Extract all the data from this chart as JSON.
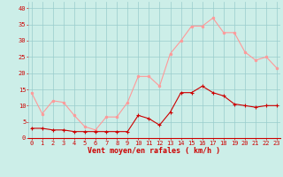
{
  "hours": [
    0,
    1,
    2,
    3,
    4,
    5,
    6,
    7,
    8,
    9,
    10,
    11,
    12,
    13,
    14,
    15,
    16,
    17,
    18,
    19,
    20,
    21,
    22,
    23
  ],
  "wind_mean": [
    3,
    3,
    2.5,
    2.5,
    2,
    2,
    2,
    2,
    2,
    2,
    7,
    6,
    4,
    8,
    14,
    14,
    16,
    14,
    13,
    10.5,
    10,
    9.5,
    10,
    10
  ],
  "wind_gust": [
    14,
    7.5,
    11.5,
    11,
    7,
    3.5,
    2.5,
    6.5,
    6.5,
    11,
    19,
    19,
    16,
    26,
    30,
    34.5,
    34.5,
    37,
    32.5,
    32.5,
    26.5,
    24,
    25,
    21.5
  ],
  "line_mean_color": "#cc0000",
  "line_gust_color": "#ff9999",
  "bg_color": "#cceee8",
  "grid_color": "#99cccc",
  "xlabel": "Vent moyen/en rafales ( km/h )",
  "ylim": [
    0,
    42
  ],
  "yticks": [
    0,
    5,
    10,
    15,
    20,
    25,
    30,
    35,
    40
  ],
  "xticks": [
    0,
    1,
    2,
    3,
    4,
    5,
    6,
    7,
    8,
    9,
    10,
    11,
    12,
    13,
    14,
    15,
    16,
    17,
    18,
    19,
    20,
    21,
    22,
    23
  ],
  "tick_color": "#cc0000",
  "label_fontsize": 5.0,
  "xlabel_fontsize": 6.0
}
